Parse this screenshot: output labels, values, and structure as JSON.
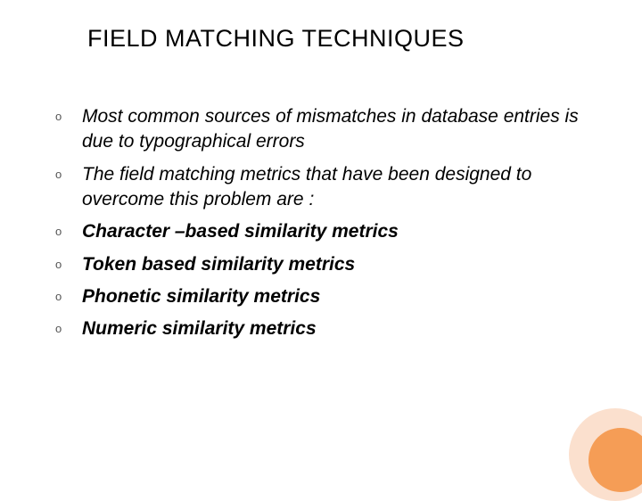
{
  "title": "FIELD MATCHING TECHNIQUES",
  "items": [
    {
      "text": "Most common sources of mismatches in database entries is due to typographical errors",
      "style": "italic"
    },
    {
      "text": "The field matching metrics that have been designed to overcome this problem are :",
      "style": "italic"
    },
    {
      "text": "Character –based similarity metrics",
      "style": "bold"
    },
    {
      "text": "Token based similarity metrics",
      "style": "bold"
    },
    {
      "text": "Phonetic similarity metrics",
      "style": "bold"
    },
    {
      "text": " Numeric similarity metrics",
      "style": "bold"
    }
  ],
  "bullet_char": "o",
  "colors": {
    "circle_outer": "#fbe0ce",
    "circle_inner": "#f59d56",
    "background": "#ffffff",
    "text": "#000000"
  },
  "typography": {
    "title_fontsize": 27,
    "body_fontsize": 21,
    "bullet_fontsize": 13,
    "font_family": "Arial"
  }
}
